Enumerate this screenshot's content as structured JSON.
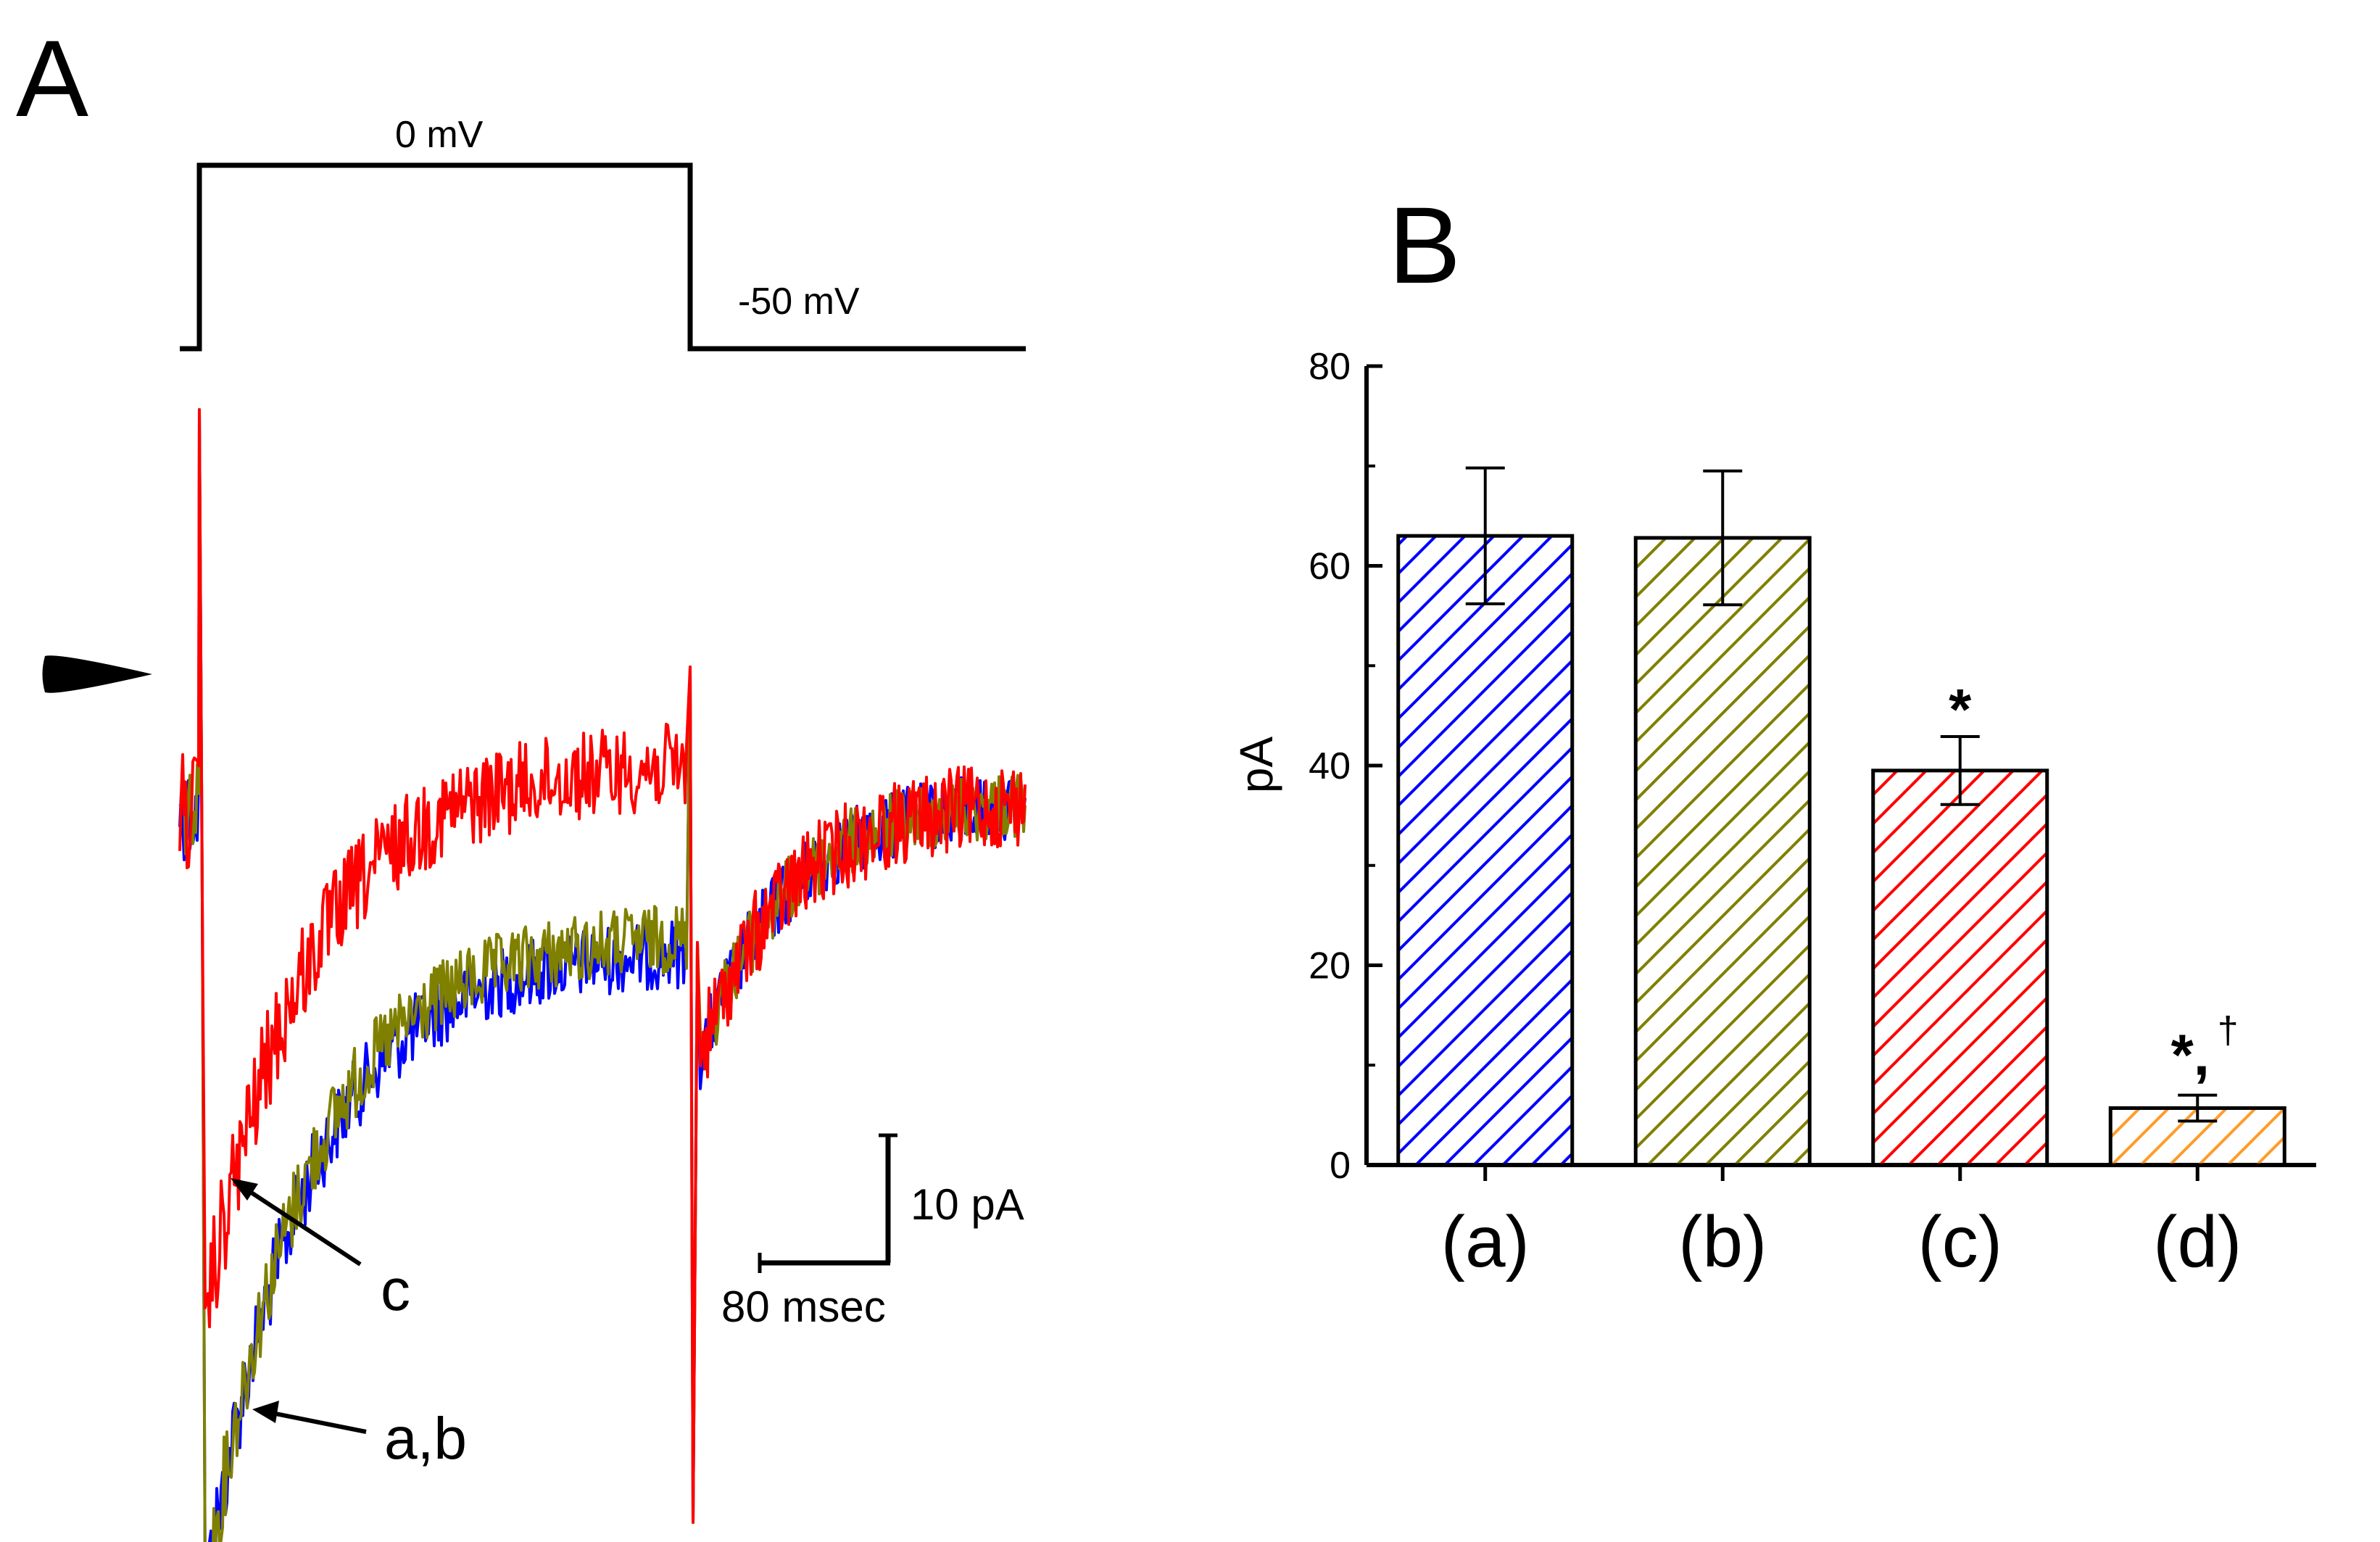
{
  "panel_a": {
    "letter": "A",
    "voltage_protocol": {
      "step_label": "0 mV",
      "hold_label": "-50 mV"
    },
    "trace_labels": {
      "c": "c",
      "ab": "a,b"
    },
    "scale_bar": {
      "current_label": "10 pA",
      "time_label": "80 msec"
    },
    "colors": {
      "a": "#0000ff",
      "b": "#808000",
      "c": "#ff0000",
      "protocol": "#000000"
    }
  },
  "panel_b": {
    "letter": "B"
  },
  "chart_data": [
    {
      "panel": "A",
      "type": "line",
      "title": "",
      "xlabel": "",
      "ylabel": "",
      "series": [
        {
          "name": "a",
          "color": "#0000ff",
          "peak_inward_pA": -62,
          "relative_sustained": 0.3
        },
        {
          "name": "b",
          "color": "#808000",
          "peak_inward_pA": -62,
          "relative_sustained": 0.28
        },
        {
          "name": "c",
          "color": "#ff0000",
          "peak_inward_pA": -40,
          "relative_sustained": 0.1
        }
      ],
      "scale_bars": {
        "current": "10 pA",
        "time": "80 msec"
      },
      "protocol": {
        "test_potential": "0 mV",
        "holding_potential": "-50 mV"
      }
    },
    {
      "panel": "B",
      "type": "bar",
      "title": "",
      "xlabel": "",
      "ylabel": "pA",
      "categories": [
        "(a)",
        "(b)",
        "(c)",
        "(d)"
      ],
      "values": [
        63,
        62.8,
        39.5,
        5.7
      ],
      "errors": [
        6.8,
        6.7,
        3.4,
        1.3
      ],
      "colors": [
        "#0000ff",
        "#808000",
        "#ff0000",
        "#ff9c2a"
      ],
      "hatch": "diagonal",
      "significance": [
        "",
        "",
        "*",
        "*,†"
      ],
      "ylim": [
        0,
        80
      ],
      "yticks": [
        0,
        20,
        40,
        60,
        80
      ],
      "grid": false,
      "legend": "none"
    }
  ]
}
